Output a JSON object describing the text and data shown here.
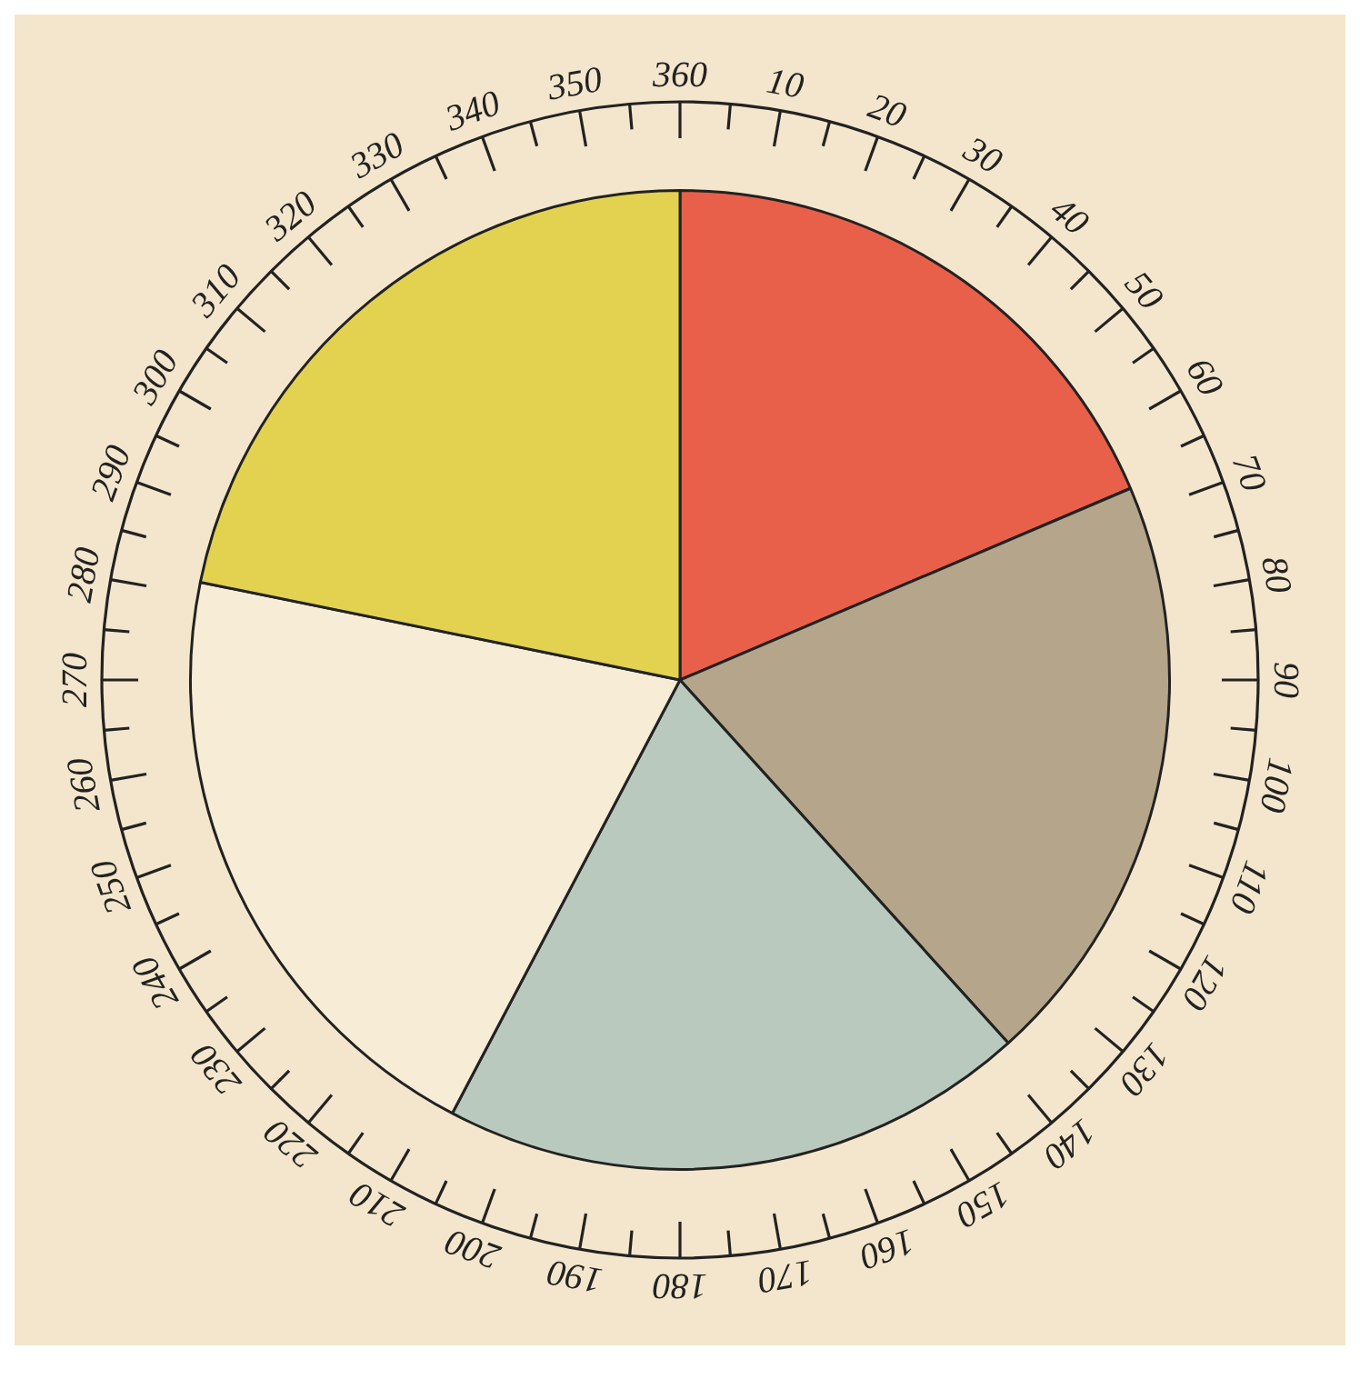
{
  "chart_data": {
    "type": "pie",
    "categories": [
      null,
      null,
      null,
      null,
      null
    ],
    "values": [
      18.6,
      19.7,
      19.4,
      20.5,
      21.8
    ],
    "colors": [
      "#e8604a",
      "#b5a58a",
      "#b9c9bd",
      "#f7ecd6",
      "#e3d24f"
    ],
    "annotations": [
      "10",
      "20",
      "30",
      "40",
      "50",
      "60",
      "70",
      "80",
      "90",
      "100",
      "110",
      "120",
      "130",
      "140",
      "150",
      "160",
      "170",
      "180",
      "190",
      "200",
      "210",
      "220",
      "230",
      "240",
      "250",
      "260",
      "270",
      "280",
      "290",
      "300",
      "310",
      "320",
      "330",
      "340",
      "350",
      "360"
    ],
    "legend": false
  }
}
